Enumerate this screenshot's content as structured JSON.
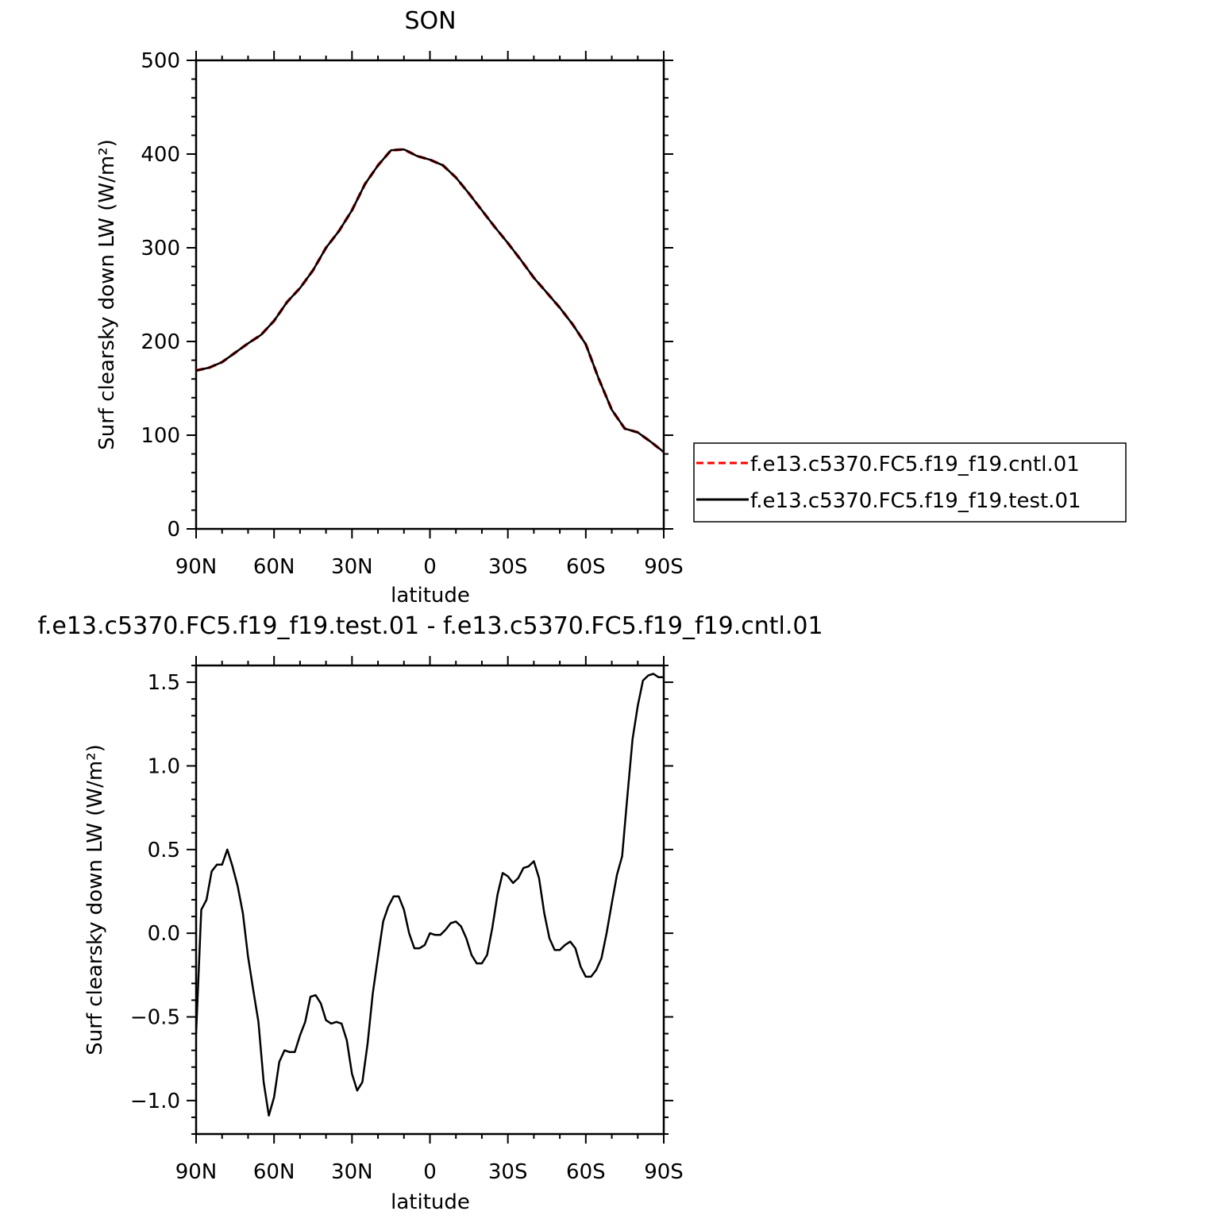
{
  "chart_data": [
    {
      "type": "line",
      "title": "SON",
      "xlabel": "latitude",
      "ylabel": "Surf clearsky down LW (W/m²)",
      "xlim": [
        90,
        -90
      ],
      "ylim": [
        0,
        500
      ],
      "xticks": [
        {
          "value": 90,
          "label": "90N"
        },
        {
          "value": 60,
          "label": "60N"
        },
        {
          "value": 30,
          "label": "30N"
        },
        {
          "value": 0,
          "label": "0"
        },
        {
          "value": -30,
          "label": "30S"
        },
        {
          "value": -60,
          "label": "60S"
        },
        {
          "value": -90,
          "label": "90S"
        }
      ],
      "yticks": [
        {
          "value": 0,
          "label": "0"
        },
        {
          "value": 100,
          "label": "100"
        },
        {
          "value": 200,
          "label": "200"
        },
        {
          "value": 300,
          "label": "300"
        },
        {
          "value": 400,
          "label": "400"
        },
        {
          "value": 500,
          "label": "500"
        }
      ],
      "legend_position": "right",
      "series": [
        {
          "name": "f.e13.c5370.FC5.f19_f19.cntl.01",
          "color": "#ff0000",
          "style": "dashed",
          "x": [
            90,
            85,
            80,
            75,
            70,
            65,
            60,
            55,
            50,
            45,
            40,
            35,
            30,
            25,
            20,
            15,
            10,
            5,
            0,
            -5,
            -10,
            -15,
            -20,
            -25,
            -30,
            -35,
            -40,
            -45,
            -50,
            -55,
            -60,
            -65,
            -70,
            -75,
            -80,
            -85,
            -90
          ],
          "values": [
            169,
            172,
            178,
            188,
            198,
            207,
            222,
            242,
            257,
            276,
            300,
            318,
            340,
            368,
            388,
            404,
            405,
            398,
            394,
            388,
            375,
            358,
            340,
            322,
            305,
            287,
            268,
            252,
            236,
            218,
            197,
            160,
            127,
            107,
            103,
            93,
            82
          ]
        },
        {
          "name": "f.e13.c5370.FC5.f19_f19.test.01",
          "color": "#000000",
          "style": "solid",
          "x": [
            90,
            85,
            80,
            75,
            70,
            65,
            60,
            55,
            50,
            45,
            40,
            35,
            30,
            25,
            20,
            15,
            10,
            5,
            0,
            -5,
            -10,
            -15,
            -20,
            -25,
            -30,
            -35,
            -40,
            -45,
            -50,
            -55,
            -60,
            -65,
            -70,
            -75,
            -80,
            -85,
            -90
          ],
          "values": [
            169,
            172,
            178,
            188,
            198,
            207,
            222,
            242,
            257,
            276,
            300,
            318,
            340,
            368,
            388,
            404,
            405,
            398,
            394,
            388,
            375,
            358,
            340,
            322,
            305,
            287,
            268,
            252,
            236,
            218,
            197,
            160,
            127,
            107,
            103,
            93,
            82
          ]
        }
      ]
    },
    {
      "type": "line",
      "title": "f.e13.c5370.FC5.f19_f19.test.01 - f.e13.c5370.FC5.f19_f19.cntl.01",
      "xlabel": "latitude",
      "ylabel": "Surf clearsky down LW (W/m²)",
      "xlim": [
        90,
        -90
      ],
      "ylim": [
        -1.2,
        1.6
      ],
      "xticks": [
        {
          "value": 90,
          "label": "90N"
        },
        {
          "value": 60,
          "label": "60N"
        },
        {
          "value": 30,
          "label": "30N"
        },
        {
          "value": 0,
          "label": "0"
        },
        {
          "value": -30,
          "label": "30S"
        },
        {
          "value": -60,
          "label": "60S"
        },
        {
          "value": -90,
          "label": "90S"
        }
      ],
      "yticks": [
        {
          "value": -1.0,
          "label": "−1.0"
        },
        {
          "value": -0.5,
          "label": "−0.5"
        },
        {
          "value": 0.0,
          "label": "0.0"
        },
        {
          "value": 0.5,
          "label": "0.5"
        },
        {
          "value": 1.0,
          "label": "1.0"
        },
        {
          "value": 1.5,
          "label": "1.5"
        }
      ],
      "series": [
        {
          "color": "#000000",
          "style": "solid",
          "x": [
            90,
            88,
            86,
            84,
            82,
            80,
            78,
            76,
            74,
            72,
            70,
            68,
            66,
            64,
            62,
            60,
            58,
            56,
            54,
            52,
            50,
            48,
            46,
            44,
            42,
            40,
            38,
            36,
            34,
            32,
            30,
            28,
            26,
            24,
            22,
            20,
            18,
            16,
            14,
            12,
            10,
            8,
            6,
            4,
            2,
            0,
            -2,
            -4,
            -6,
            -8,
            -10,
            -12,
            -14,
            -16,
            -18,
            -20,
            -22,
            -24,
            -26,
            -28,
            -30,
            -32,
            -34,
            -36,
            -38,
            -40,
            -42,
            -44,
            -46,
            -48,
            -50,
            -52,
            -54,
            -56,
            -58,
            -60,
            -62,
            -64,
            -66,
            -68,
            -70,
            -72,
            -74,
            -76,
            -78,
            -80,
            -82,
            -84,
            -86,
            -88,
            -90
          ],
          "values": [
            -0.6,
            0.14,
            0.2,
            0.37,
            0.41,
            0.41,
            0.5,
            0.4,
            0.28,
            0.12,
            -0.14,
            -0.34,
            -0.53,
            -0.89,
            -1.09,
            -0.98,
            -0.77,
            -0.7,
            -0.71,
            -0.71,
            -0.61,
            -0.53,
            -0.38,
            -0.37,
            -0.42,
            -0.52,
            -0.54,
            -0.53,
            -0.54,
            -0.64,
            -0.84,
            -0.94,
            -0.89,
            -0.66,
            -0.36,
            -0.14,
            0.07,
            0.16,
            0.22,
            0.22,
            0.14,
            0.0,
            -0.09,
            -0.09,
            -0.07,
            0.0,
            -0.01,
            -0.01,
            0.02,
            0.06,
            0.07,
            0.04,
            -0.03,
            -0.13,
            -0.18,
            -0.18,
            -0.13,
            0.03,
            0.23,
            0.36,
            0.34,
            0.3,
            0.33,
            0.39,
            0.4,
            0.43,
            0.33,
            0.12,
            -0.03,
            -0.1,
            -0.1,
            -0.07,
            -0.05,
            -0.09,
            -0.2,
            -0.26,
            -0.26,
            -0.22,
            -0.15,
            0.0,
            0.18,
            0.35,
            0.46,
            0.82,
            1.16,
            1.36,
            1.51,
            1.54,
            1.55,
            1.53,
            1.53
          ]
        }
      ]
    }
  ]
}
